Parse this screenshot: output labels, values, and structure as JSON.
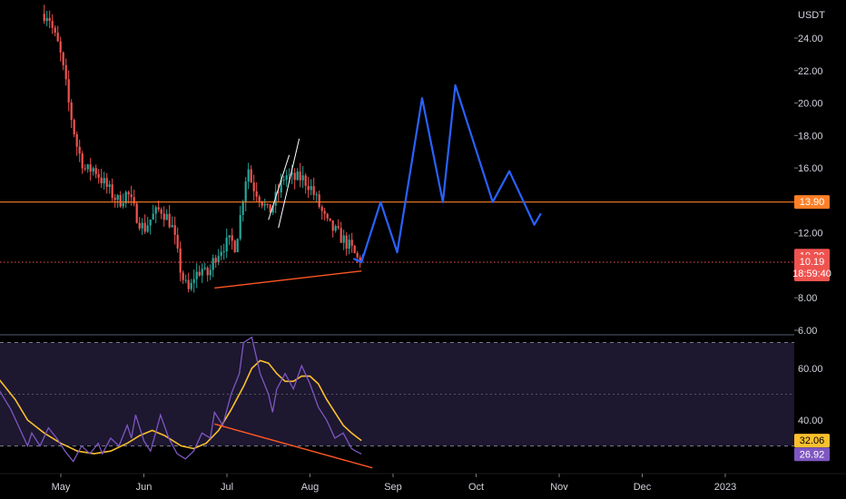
{
  "chart_data": [
    {
      "type": "candlestick",
      "currency_label": "USDT",
      "y_ticks": [
        "24.00",
        "22.00",
        "20.00",
        "18.00",
        "16.00",
        "14.00",
        "12.00",
        "10.00",
        "8.00",
        "6.00"
      ],
      "x_ticks": [
        "May",
        "Jun",
        "Jul",
        "Aug",
        "Sep",
        "Oct",
        "Nov",
        "Dec",
        "2023"
      ],
      "ylim": [
        6,
        25
      ],
      "colors": {
        "up": "#26a69a",
        "down": "#ef5350",
        "resistance": "#ff7f27",
        "projection": "#2962ff",
        "divergence": "#ff5722",
        "trend": "#ffffff"
      },
      "resistance_level": {
        "value": 13.9,
        "label": "13.90"
      },
      "current_price": {
        "value": 10.19,
        "label": "10.19",
        "countdown": "18:59:40"
      },
      "prev_close": {
        "value": 10.29,
        "label": "10.29"
      },
      "price_path": [
        [
          -0.15,
          25.5
        ],
        [
          -0.08,
          24.2
        ],
        [
          -0.02,
          23.4
        ],
        [
          0.05,
          21.5
        ],
        [
          0.1,
          19.8
        ],
        [
          0.15,
          18.5
        ],
        [
          0.2,
          17.2
        ],
        [
          0.3,
          15.8
        ],
        [
          0.4,
          16.0
        ],
        [
          0.5,
          15.2
        ],
        [
          0.6,
          14.5
        ],
        [
          0.7,
          13.9
        ],
        [
          0.8,
          14.5
        ],
        [
          0.9,
          13.2
        ],
        [
          1.0,
          12.2
        ],
        [
          1.1,
          13.0
        ],
        [
          1.2,
          13.5
        ],
        [
          1.3,
          12.8
        ],
        [
          1.35,
          12.2
        ],
        [
          1.4,
          10.8
        ],
        [
          1.45,
          9.5
        ],
        [
          1.5,
          8.8
        ],
        [
          1.55,
          8.3
        ],
        [
          1.6,
          9.3
        ],
        [
          1.7,
          9.8
        ],
        [
          1.75,
          9.3
        ],
        [
          1.8,
          9.7
        ],
        [
          1.85,
          10.5
        ],
        [
          1.95,
          11.2
        ],
        [
          2.05,
          11.5
        ],
        [
          2.1,
          11.2
        ],
        [
          2.15,
          12.6
        ],
        [
          2.2,
          14.5
        ],
        [
          2.25,
          16.2
        ],
        [
          2.3,
          15.0
        ],
        [
          2.4,
          14.2
        ],
        [
          2.5,
          13.2
        ],
        [
          2.55,
          13.7
        ],
        [
          2.6,
          14.3
        ],
        [
          2.7,
          15.6
        ],
        [
          2.8,
          15.3
        ],
        [
          2.9,
          15.4
        ],
        [
          3.0,
          14.9
        ],
        [
          3.1,
          13.8
        ],
        [
          3.2,
          12.6
        ],
        [
          3.3,
          12.1
        ],
        [
          3.4,
          11.6
        ],
        [
          3.5,
          11.0
        ],
        [
          3.58,
          10.3
        ],
        [
          3.62,
          10.19
        ]
      ],
      "projection_path": [
        [
          3.62,
          10.19
        ],
        [
          3.85,
          13.9
        ],
        [
          4.05,
          10.8
        ],
        [
          4.35,
          20.3
        ],
        [
          4.6,
          13.9
        ],
        [
          4.75,
          21.1
        ],
        [
          5.2,
          13.9
        ],
        [
          5.4,
          15.8
        ],
        [
          5.7,
          12.5
        ],
        [
          5.78,
          13.2
        ]
      ],
      "trend_lines": [
        {
          "from": [
            2.5,
            12.8
          ],
          "to": [
            2.75,
            16.8
          ]
        },
        {
          "from": [
            2.62,
            12.3
          ],
          "to": [
            2.87,
            17.8
          ]
        }
      ],
      "divergence_line": {
        "from": [
          1.85,
          8.6
        ],
        "to": [
          3.62,
          9.65
        ]
      }
    },
    {
      "type": "line",
      "indicator": "RSI",
      "y_ticks": [
        "60.00",
        "40.00"
      ],
      "ylim": [
        20,
        85
      ],
      "bands": [
        70,
        50,
        30
      ],
      "rsi_value": {
        "value": 26.92,
        "label": "26.92"
      },
      "ma_value": {
        "value": 32.06,
        "label": "32.06"
      },
      "colors": {
        "rsi": "#7e57c2",
        "ma": "#fbc02d",
        "divergence": "#ff5722",
        "band_fill": "#1d1730"
      },
      "rsi": [
        [
          -0.75,
          52
        ],
        [
          -0.6,
          44
        ],
        [
          -0.5,
          37
        ],
        [
          -0.4,
          30
        ],
        [
          -0.35,
          35
        ],
        [
          -0.25,
          30
        ],
        [
          -0.15,
          37
        ],
        [
          -0.05,
          33
        ],
        [
          0.05,
          28
        ],
        [
          0.15,
          24
        ],
        [
          0.25,
          30
        ],
        [
          0.35,
          27
        ],
        [
          0.45,
          31
        ],
        [
          0.5,
          27
        ],
        [
          0.6,
          33
        ],
        [
          0.7,
          30
        ],
        [
          0.8,
          38
        ],
        [
          0.85,
          33
        ],
        [
          0.9,
          42
        ],
        [
          1.0,
          32
        ],
        [
          1.08,
          28
        ],
        [
          1.15,
          36
        ],
        [
          1.2,
          42
        ],
        [
          1.3,
          33
        ],
        [
          1.4,
          27
        ],
        [
          1.5,
          25
        ],
        [
          1.6,
          28
        ],
        [
          1.7,
          35
        ],
        [
          1.8,
          33
        ],
        [
          1.85,
          43
        ],
        [
          1.95,
          38
        ],
        [
          2.05,
          50
        ],
        [
          2.15,
          58
        ],
        [
          2.2,
          70
        ],
        [
          2.3,
          72
        ],
        [
          2.4,
          58
        ],
        [
          2.5,
          50
        ],
        [
          2.55,
          43
        ],
        [
          2.6,
          52
        ],
        [
          2.7,
          58
        ],
        [
          2.8,
          52
        ],
        [
          2.9,
          61
        ],
        [
          3.0,
          54
        ],
        [
          3.1,
          45
        ],
        [
          3.2,
          40
        ],
        [
          3.3,
          33
        ],
        [
          3.4,
          35
        ],
        [
          3.5,
          29
        ],
        [
          3.55,
          28
        ],
        [
          3.62,
          26.92
        ]
      ],
      "ma": [
        [
          -0.75,
          56
        ],
        [
          -0.55,
          48
        ],
        [
          -0.4,
          40
        ],
        [
          -0.2,
          35
        ],
        [
          0.0,
          31
        ],
        [
          0.2,
          28
        ],
        [
          0.4,
          27
        ],
        [
          0.6,
          28
        ],
        [
          0.8,
          31
        ],
        [
          0.95,
          34
        ],
        [
          1.1,
          36
        ],
        [
          1.25,
          34
        ],
        [
          1.45,
          30
        ],
        [
          1.6,
          29
        ],
        [
          1.75,
          31
        ],
        [
          1.9,
          36
        ],
        [
          2.05,
          44
        ],
        [
          2.2,
          53
        ],
        [
          2.3,
          60
        ],
        [
          2.4,
          63
        ],
        [
          2.5,
          62
        ],
        [
          2.6,
          58
        ],
        [
          2.7,
          55
        ],
        [
          2.8,
          55
        ],
        [
          2.9,
          57
        ],
        [
          3.0,
          57
        ],
        [
          3.1,
          54
        ],
        [
          3.2,
          48
        ],
        [
          3.3,
          43
        ],
        [
          3.4,
          38
        ],
        [
          3.5,
          35
        ],
        [
          3.62,
          32.06
        ]
      ],
      "divergence_line": {
        "from": [
          1.85,
          38.5
        ],
        "to": [
          3.62,
          21.5
        ]
      }
    }
  ]
}
